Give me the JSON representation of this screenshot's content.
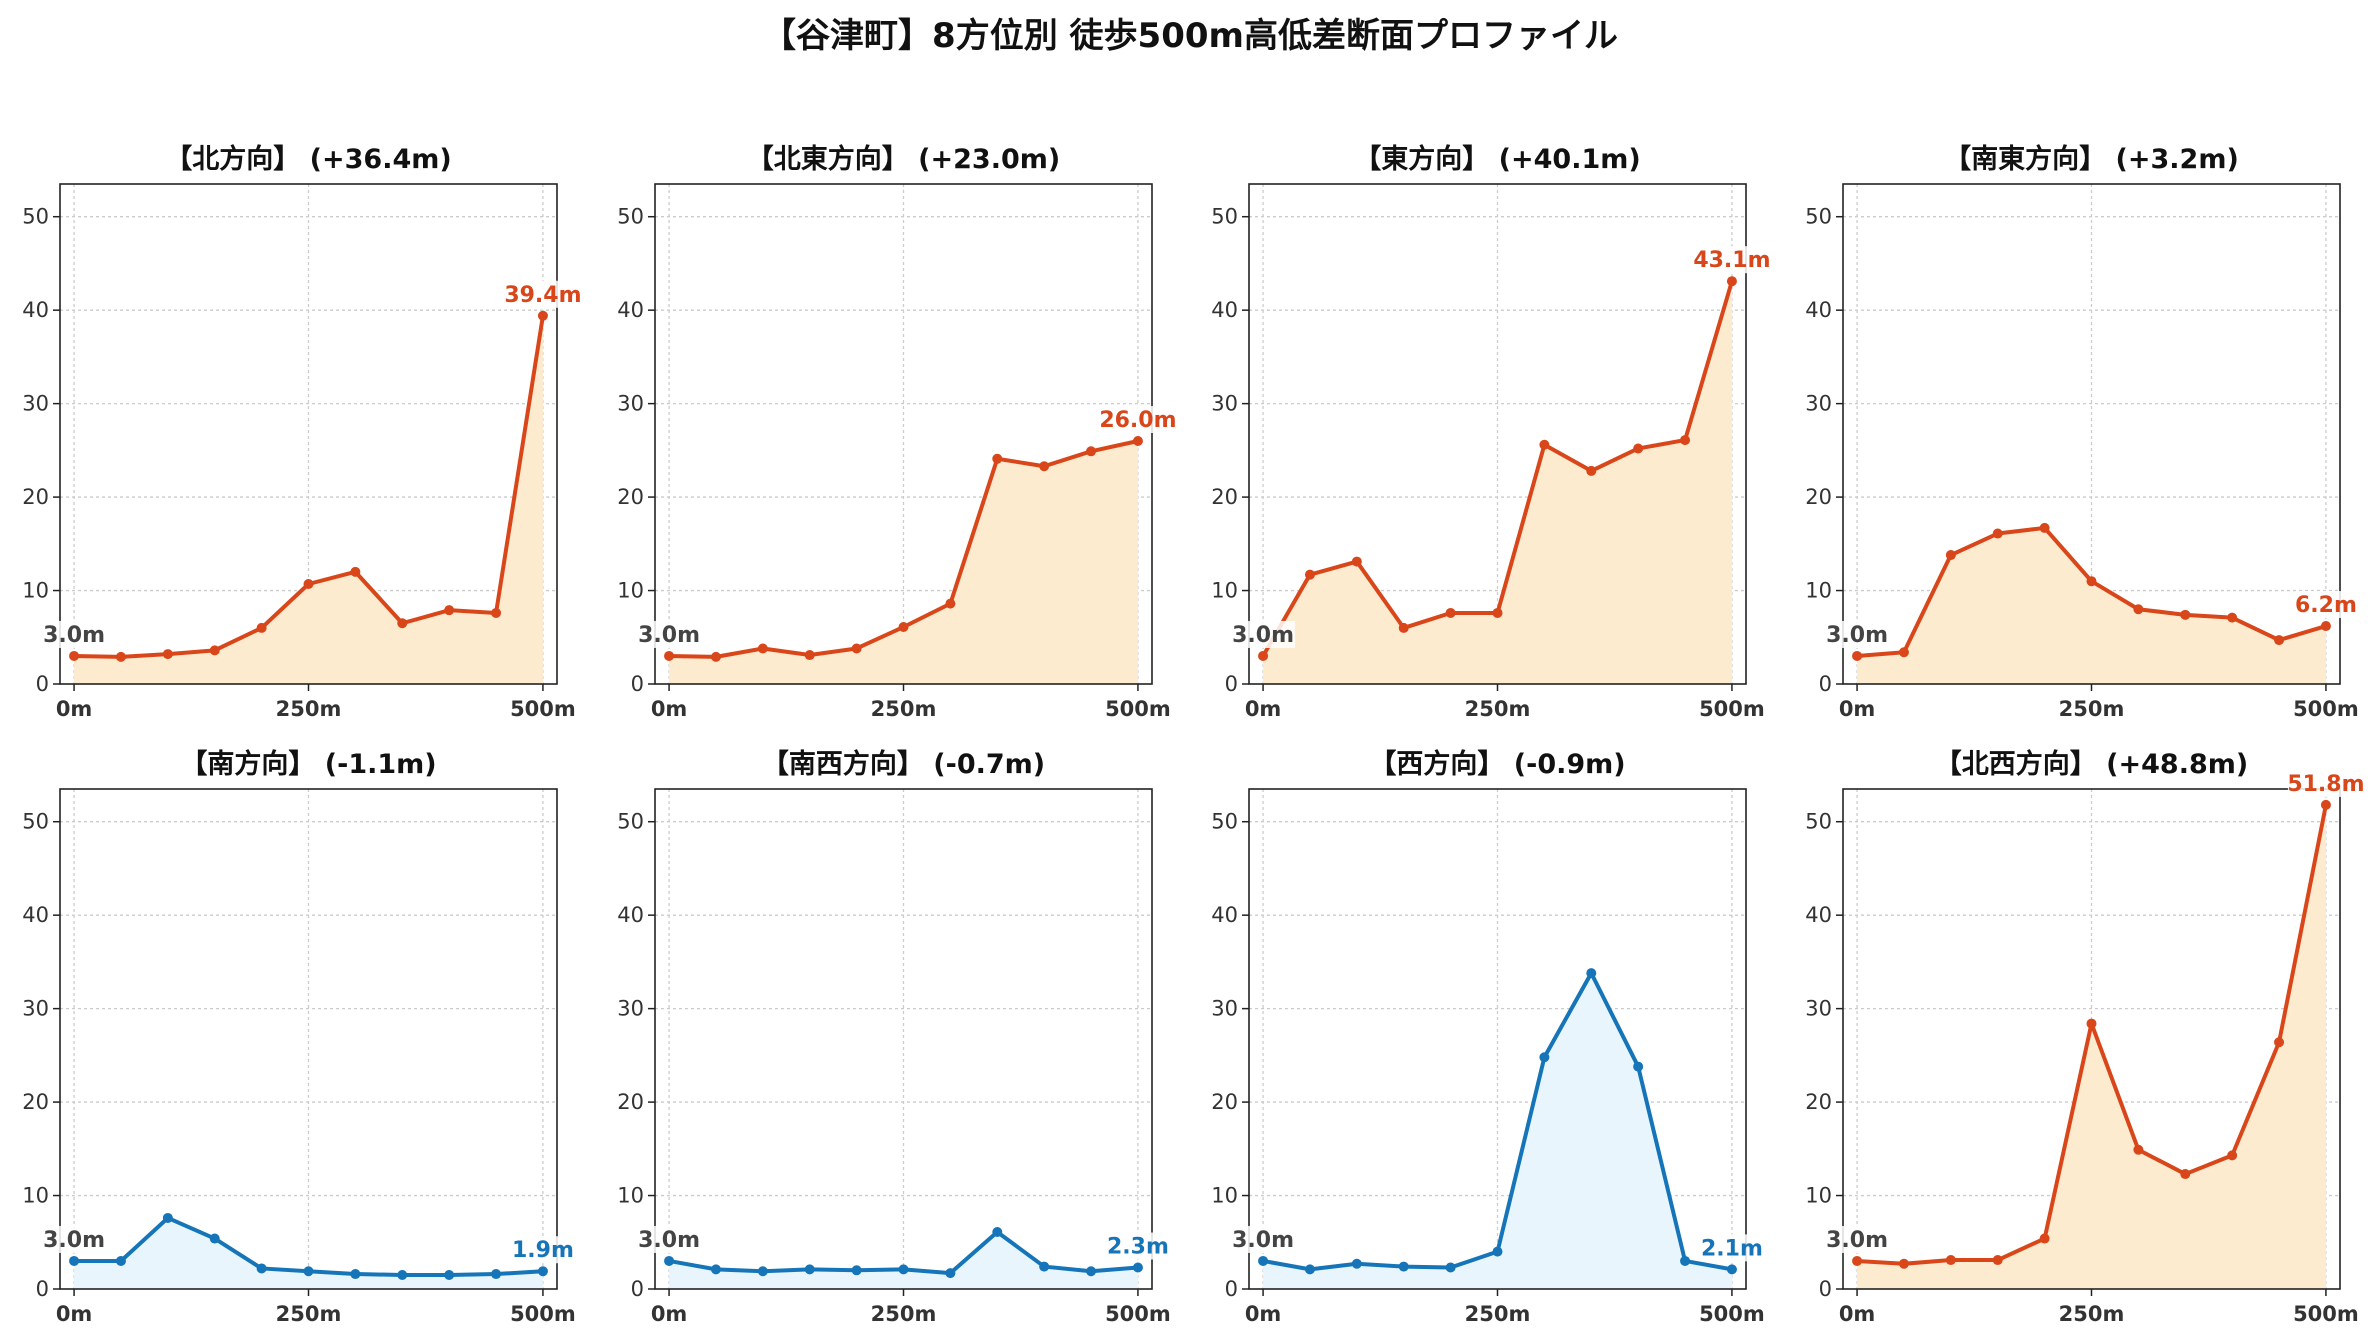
{
  "title": "【谷津町】8方位別 徒歩500m高低差断面プロファイル",
  "colors": {
    "up_line": "#d9461a",
    "up_fill": "#fdebd0",
    "down_line": "#1575b8",
    "down_fill": "#e8f5fc",
    "start_label": "#444444"
  },
  "chart_data": [
    {
      "type": "area",
      "title": "【北方向】 (+36.4m)",
      "trend": "up",
      "x": [
        0,
        50,
        100,
        150,
        200,
        250,
        300,
        350,
        400,
        450,
        500
      ],
      "y": [
        3.0,
        2.9,
        3.2,
        3.6,
        6.0,
        10.7,
        12.0,
        6.5,
        7.9,
        7.6,
        39.4
      ],
      "start_label": "3.0m",
      "end_label": "39.4m",
      "ylim": [
        0,
        53.5
      ],
      "yticks": [
        0,
        10,
        20,
        30,
        40,
        50
      ],
      "xticks": [
        0,
        250,
        500
      ],
      "xtick_labels": [
        "0m",
        "250m",
        "500m"
      ],
      "grid": true
    },
    {
      "type": "area",
      "title": "【北東方向】 (+23.0m)",
      "trend": "up",
      "x": [
        0,
        50,
        100,
        150,
        200,
        250,
        300,
        350,
        400,
        450,
        500
      ],
      "y": [
        3.0,
        2.9,
        3.8,
        3.1,
        3.8,
        6.1,
        8.6,
        24.1,
        23.3,
        24.9,
        26.0
      ],
      "start_label": "3.0m",
      "end_label": "26.0m",
      "ylim": [
        0,
        53.5
      ],
      "yticks": [
        0,
        10,
        20,
        30,
        40,
        50
      ],
      "xticks": [
        0,
        250,
        500
      ],
      "xtick_labels": [
        "0m",
        "250m",
        "500m"
      ],
      "grid": true
    },
    {
      "type": "area",
      "title": "【東方向】 (+40.1m)",
      "trend": "up",
      "x": [
        0,
        50,
        100,
        150,
        200,
        250,
        300,
        350,
        400,
        450,
        500
      ],
      "y": [
        3.0,
        11.7,
        13.1,
        6.0,
        7.6,
        7.6,
        25.6,
        22.8,
        25.2,
        26.1,
        43.1
      ],
      "start_label": "3.0m",
      "end_label": "43.1m",
      "ylim": [
        0,
        53.5
      ],
      "yticks": [
        0,
        10,
        20,
        30,
        40,
        50
      ],
      "xticks": [
        0,
        250,
        500
      ],
      "xtick_labels": [
        "0m",
        "250m",
        "500m"
      ],
      "grid": true
    },
    {
      "type": "area",
      "title": "【南東方向】 (+3.2m)",
      "trend": "up",
      "x": [
        0,
        50,
        100,
        150,
        200,
        250,
        300,
        350,
        400,
        450,
        500
      ],
      "y": [
        3.0,
        3.4,
        13.8,
        16.1,
        16.7,
        11.0,
        8.0,
        7.4,
        7.1,
        4.7,
        6.2
      ],
      "start_label": "3.0m",
      "end_label": "6.2m",
      "ylim": [
        0,
        53.5
      ],
      "yticks": [
        0,
        10,
        20,
        30,
        40,
        50
      ],
      "xticks": [
        0,
        250,
        500
      ],
      "xtick_labels": [
        "0m",
        "250m",
        "500m"
      ],
      "grid": true
    },
    {
      "type": "area",
      "title": "【南方向】 (-1.1m)",
      "trend": "down",
      "x": [
        0,
        50,
        100,
        150,
        200,
        250,
        300,
        350,
        400,
        450,
        500
      ],
      "y": [
        3.0,
        3.0,
        7.6,
        5.4,
        2.2,
        1.9,
        1.6,
        1.5,
        1.5,
        1.6,
        1.9
      ],
      "start_label": "3.0m",
      "end_label": "1.9m",
      "ylim": [
        0,
        53.5
      ],
      "yticks": [
        0,
        10,
        20,
        30,
        40,
        50
      ],
      "xticks": [
        0,
        250,
        500
      ],
      "xtick_labels": [
        "0m",
        "250m",
        "500m"
      ],
      "grid": true
    },
    {
      "type": "area",
      "title": "【南西方向】 (-0.7m)",
      "trend": "down",
      "x": [
        0,
        50,
        100,
        150,
        200,
        250,
        300,
        350,
        400,
        450,
        500
      ],
      "y": [
        3.0,
        2.1,
        1.9,
        2.1,
        2.0,
        2.1,
        1.7,
        6.1,
        2.4,
        1.9,
        2.3
      ],
      "start_label": "3.0m",
      "end_label": "2.3m",
      "ylim": [
        0,
        53.5
      ],
      "yticks": [
        0,
        10,
        20,
        30,
        40,
        50
      ],
      "xticks": [
        0,
        250,
        500
      ],
      "xtick_labels": [
        "0m",
        "250m",
        "500m"
      ],
      "grid": true
    },
    {
      "type": "area",
      "title": "【西方向】 (-0.9m)",
      "trend": "down",
      "x": [
        0,
        50,
        100,
        150,
        200,
        250,
        300,
        350,
        400,
        450,
        500
      ],
      "y": [
        3.0,
        2.1,
        2.7,
        2.4,
        2.3,
        4.0,
        24.8,
        33.8,
        23.8,
        3.0,
        2.1
      ],
      "start_label": "3.0m",
      "end_label": "2.1m",
      "ylim": [
        0,
        53.5
      ],
      "yticks": [
        0,
        10,
        20,
        30,
        40,
        50
      ],
      "xticks": [
        0,
        250,
        500
      ],
      "xtick_labels": [
        "0m",
        "250m",
        "500m"
      ],
      "grid": true
    },
    {
      "type": "area",
      "title": "【北西方向】 (+48.8m)",
      "trend": "up",
      "x": [
        0,
        50,
        100,
        150,
        200,
        250,
        300,
        350,
        400,
        450,
        500
      ],
      "y": [
        3.0,
        2.7,
        3.1,
        3.1,
        5.4,
        28.4,
        14.9,
        12.3,
        14.3,
        26.4,
        51.8
      ],
      "start_label": "3.0m",
      "end_label": "51.8m",
      "ylim": [
        0,
        53.5
      ],
      "yticks": [
        0,
        10,
        20,
        30,
        40,
        50
      ],
      "xticks": [
        0,
        250,
        500
      ],
      "xtick_labels": [
        "0m",
        "250m",
        "500m"
      ],
      "grid": true
    }
  ]
}
